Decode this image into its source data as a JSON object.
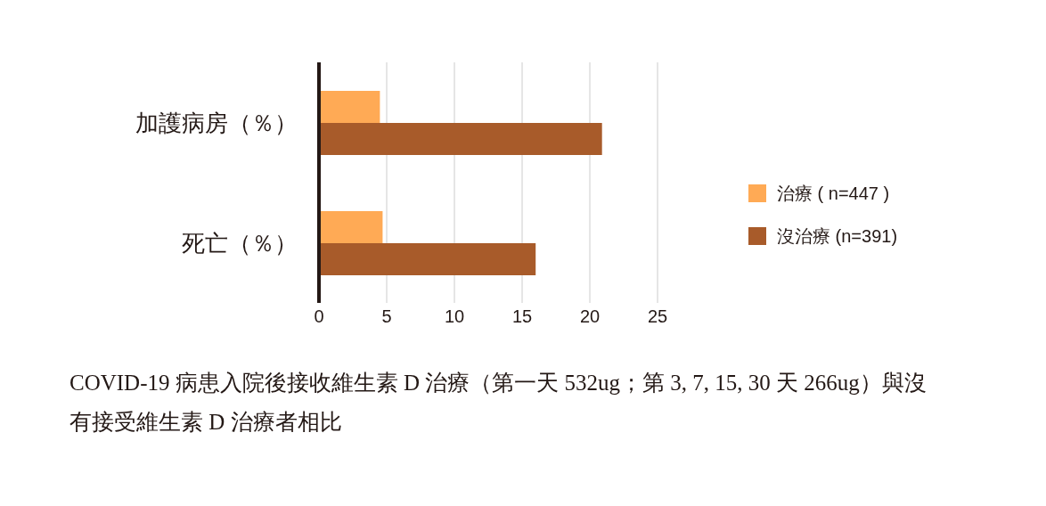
{
  "chart_data": {
    "type": "bar",
    "orientation": "horizontal",
    "categories": [
      "加護病房（％）",
      "死亡（％）"
    ],
    "series": [
      {
        "name": "治療 ( n=447 )",
        "color": "#ffaa55",
        "values": [
          4.5,
          4.7
        ]
      },
      {
        "name": "沒治療 (n=391)",
        "color": "#a85b2a",
        "values": [
          20.9,
          16.0
        ]
      }
    ],
    "xlim": [
      0,
      25
    ],
    "xticks": [
      0,
      5,
      10,
      15,
      20,
      25
    ],
    "grid": "x",
    "legend": "right",
    "annotations": [
      "COVID-19 病患入院後接收維生素 D 治療（第一天 532ug；第 3, 7, 15, 30 天 266ug）與沒有接受維生素 D 治療者相比"
    ]
  }
}
